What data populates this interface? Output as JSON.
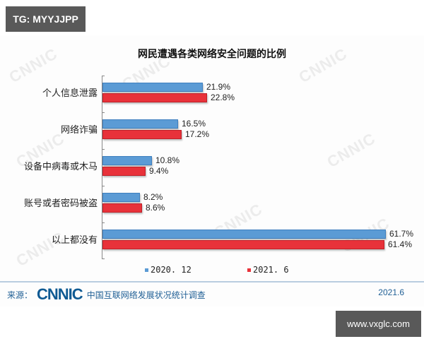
{
  "overlay": {
    "top_tag": "TG: MYYJJPP",
    "bottom_url": "www.vxglc.com"
  },
  "watermark": "CNNIC",
  "chart_data": {
    "type": "bar",
    "orientation": "horizontal",
    "title": "网民遭遇各类网络安全问题的比例",
    "categories": [
      "个人信息泄露",
      "网络诈骗",
      "设备中病毒或木马",
      "账号或者密码被盗",
      "以上都没有"
    ],
    "series": [
      {
        "name": "2020. 12",
        "color": "#5b9bd5",
        "values": [
          21.9,
          16.5,
          10.8,
          8.2,
          61.7
        ],
        "labels": [
          "21.9%",
          "16.5%",
          "10.8%",
          "8.2%",
          "61.7%"
        ]
      },
      {
        "name": "2021. 6",
        "color": "#e8323a",
        "values": [
          22.8,
          17.2,
          9.4,
          8.6,
          61.4
        ],
        "labels": [
          "22.8%",
          "17.2%",
          "9.4%",
          "8.6%",
          "61.4%"
        ]
      }
    ],
    "xlabel": "",
    "ylabel": "",
    "xlim": [
      0,
      70
    ],
    "grid": false,
    "legend_position": "bottom",
    "unit": "%"
  },
  "footer": {
    "source_label": "来源：",
    "logo": "CNNIC",
    "source_name": "中国互联网络发展状况统计调查",
    "date": "2021.6"
  }
}
